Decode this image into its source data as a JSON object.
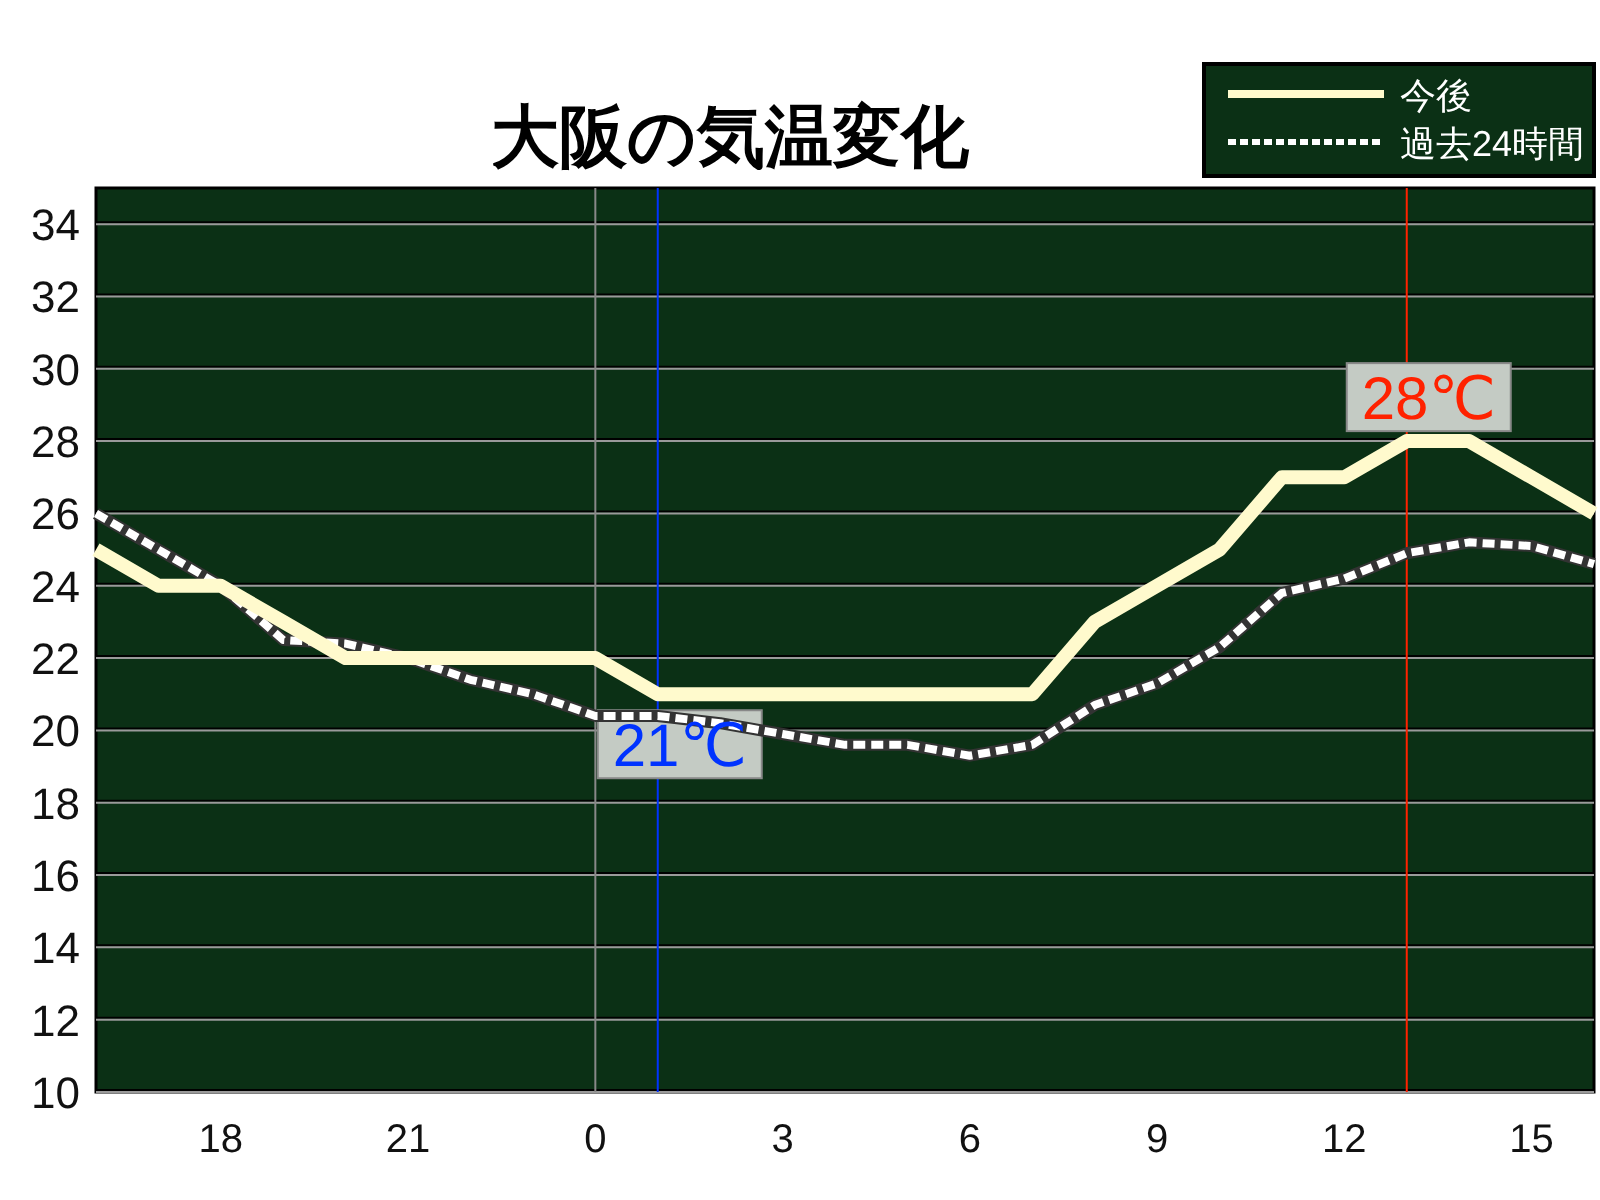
{
  "chart_data": {
    "type": "line",
    "title": "大阪の気温変化",
    "categories": [
      null,
      null,
      "18",
      null,
      null,
      "21",
      null,
      null,
      "0",
      null,
      null,
      "3",
      null,
      null,
      "6",
      null,
      null,
      "9",
      null,
      null,
      "12",
      null,
      null,
      "15",
      null
    ],
    "series": [
      {
        "name": "今後",
        "color": "#fffacd",
        "line_style": "solid",
        "values": [
          25,
          24,
          24,
          23,
          22,
          22,
          22,
          22,
          22,
          21,
          21,
          21,
          21,
          21,
          21,
          21,
          23,
          24,
          25,
          27,
          27,
          28,
          28,
          27,
          26
        ]
      },
      {
        "name": "過去24時間",
        "color": "#ffffff",
        "line_style": "dashed",
        "values": [
          26,
          25,
          24,
          22.5,
          22.4,
          22,
          21.4,
          21,
          20.4,
          20.4,
          20.2,
          19.9,
          19.6,
          19.6,
          19.3,
          19.6,
          20.7,
          21.3,
          22.3,
          23.8,
          24.2,
          24.9,
          25.2,
          25.1,
          24.6
        ]
      }
    ],
    "ylim": [
      10,
      35
    ],
    "yticks": [
      10,
      12,
      14,
      16,
      18,
      20,
      22,
      24,
      26,
      28,
      30,
      32,
      34
    ],
    "grid": "y",
    "legend": "top right",
    "ref_lines": [
      {
        "axis": "x",
        "value": "0",
        "color": "#888888"
      }
    ],
    "annotations": [
      {
        "text": "21℃",
        "y": 21
      },
      {
        "text": "28℃",
        "y": 28
      }
    ]
  }
}
